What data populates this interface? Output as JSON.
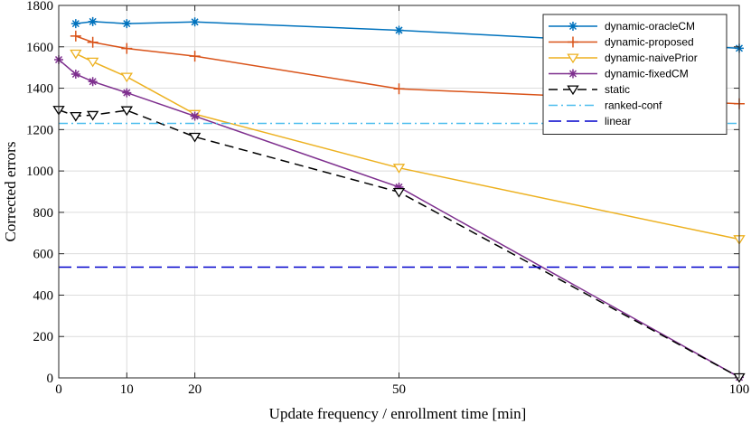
{
  "chart_data": {
    "type": "line",
    "xlabel": "Update frequency / enrollment time [min]",
    "ylabel": "Corrected errors",
    "xlim": [
      0,
      100
    ],
    "ylim": [
      0,
      1800
    ],
    "xticks": [
      0,
      10,
      20,
      50,
      100
    ],
    "xticks_labeled": [
      "0",
      "10",
      "20",
      "50",
      "100"
    ],
    "yticks": [
      0,
      200,
      400,
      600,
      800,
      1000,
      1200,
      1400,
      1600,
      1800
    ],
    "yticks_labeled": [
      "0",
      "200",
      "400",
      "600",
      "800",
      "1000",
      "1200",
      "1400",
      "1600",
      "1800"
    ],
    "grid": true,
    "legend_position": "top-right",
    "series": [
      {
        "name": "dynamic-oracleCM",
        "color": "#0072BD",
        "marker": "asterisk",
        "dash": "solid",
        "x": [
          2.5,
          5,
          10,
          20,
          50,
          100
        ],
        "y": [
          1712,
          1722,
          1712,
          1720,
          1680,
          1593
        ]
      },
      {
        "name": "dynamic-proposed",
        "color": "#D95319",
        "marker": "plus",
        "dash": "solid",
        "x": [
          2.5,
          5,
          10,
          20,
          50,
          100
        ],
        "y": [
          1652,
          1622,
          1592,
          1555,
          1397,
          1325
        ]
      },
      {
        "name": "dynamic-naivePrior",
        "color": "#EDB120",
        "marker": "triangle-down",
        "dash": "solid",
        "x": [
          2.5,
          5,
          10,
          20,
          50,
          100
        ],
        "y": [
          1567,
          1528,
          1455,
          1275,
          1015,
          670
        ]
      },
      {
        "name": "dynamic-fixedCM",
        "color": "#7E2F8E",
        "marker": "asterisk",
        "dash": "solid",
        "x": [
          0,
          2.5,
          5,
          10,
          20,
          50,
          100
        ],
        "y": [
          1538,
          1468,
          1432,
          1378,
          1265,
          922,
          3
        ]
      },
      {
        "name": "static",
        "color": "#000000",
        "marker": "triangle-down",
        "dash": "dashed",
        "x": [
          0,
          2.5,
          5,
          10,
          20,
          50,
          100
        ],
        "y": [
          1295,
          1265,
          1270,
          1293,
          1165,
          898,
          3
        ]
      },
      {
        "name": "ranked-conf",
        "color": "#4DBEEE",
        "marker": "none",
        "dash": "dashdot",
        "x": [
          0,
          100
        ],
        "y": [
          1230,
          1230
        ]
      },
      {
        "name": "linear",
        "color": "#0000CC",
        "marker": "none",
        "dash": "longdash",
        "x": [
          0,
          100
        ],
        "y": [
          535,
          535
        ]
      }
    ]
  }
}
